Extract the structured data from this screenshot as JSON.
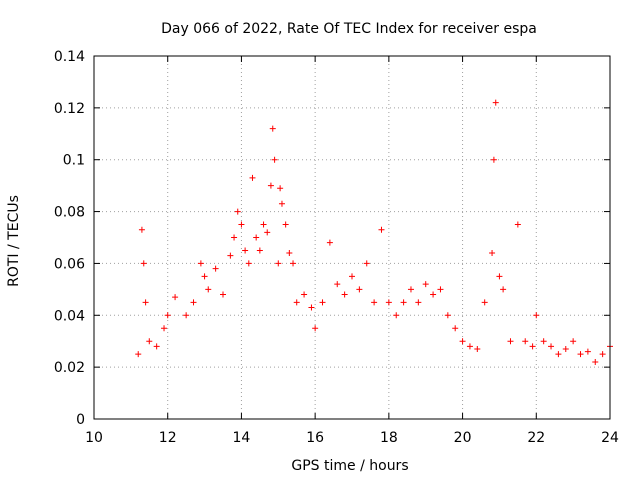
{
  "chart_data": {
    "type": "scatter",
    "title": "Day 066 of 2022, Rate Of TEC Index for receiver espa",
    "xlabel": "GPS time / hours",
    "ylabel": "ROTI / TECUs",
    "xlim": [
      10,
      24
    ],
    "ylim": [
      0,
      0.14
    ],
    "x_ticks": [
      10,
      12,
      14,
      16,
      18,
      20,
      22,
      24
    ],
    "y_ticks": [
      0,
      0.02,
      0.04,
      0.06,
      0.08,
      0.1,
      0.12,
      0.14
    ],
    "y_tick_labels": [
      "0",
      "0.02",
      "0.04",
      "0.06",
      "0.08",
      "0.1",
      "0.12",
      "0.14"
    ],
    "grid": true,
    "marker": "+",
    "color": "#ff0000",
    "series": [
      {
        "name": "ROTI",
        "x": [
          11.2,
          11.3,
          11.35,
          11.4,
          11.5,
          11.7,
          11.9,
          12.0,
          12.2,
          12.5,
          12.7,
          12.9,
          13.0,
          13.1,
          13.3,
          13.5,
          13.7,
          13.8,
          13.9,
          14.0,
          14.1,
          14.2,
          14.3,
          14.4,
          14.5,
          14.6,
          14.7,
          14.8,
          14.85,
          14.9,
          15.0,
          15.05,
          15.1,
          15.2,
          15.3,
          15.4,
          15.5,
          15.7,
          15.9,
          16.0,
          16.2,
          16.4,
          16.6,
          16.8,
          17.0,
          17.2,
          17.4,
          17.6,
          17.8,
          18.0,
          18.2,
          18.4,
          18.6,
          18.8,
          19.0,
          19.2,
          19.4,
          19.6,
          19.8,
          20.0,
          20.2,
          20.4,
          20.6,
          20.8,
          20.85,
          20.9,
          21.0,
          21.1,
          21.3,
          21.5,
          21.7,
          21.9,
          22.0,
          22.2,
          22.4,
          22.6,
          22.8,
          23.0,
          23.2,
          23.4,
          23.6,
          23.8,
          24.0
        ],
        "y": [
          0.025,
          0.073,
          0.06,
          0.045,
          0.03,
          0.028,
          0.035,
          0.04,
          0.047,
          0.04,
          0.045,
          0.06,
          0.055,
          0.05,
          0.058,
          0.048,
          0.063,
          0.07,
          0.08,
          0.075,
          0.065,
          0.06,
          0.093,
          0.07,
          0.065,
          0.075,
          0.072,
          0.09,
          0.112,
          0.1,
          0.06,
          0.089,
          0.083,
          0.075,
          0.064,
          0.06,
          0.045,
          0.048,
          0.043,
          0.035,
          0.045,
          0.068,
          0.052,
          0.048,
          0.055,
          0.05,
          0.06,
          0.045,
          0.073,
          0.045,
          0.04,
          0.045,
          0.05,
          0.045,
          0.052,
          0.048,
          0.05,
          0.04,
          0.035,
          0.03,
          0.028,
          0.027,
          0.045,
          0.064,
          0.1,
          0.122,
          0.055,
          0.05,
          0.03,
          0.075,
          0.03,
          0.028,
          0.04,
          0.03,
          0.028,
          0.025,
          0.027,
          0.03,
          0.025,
          0.026,
          0.022,
          0.025,
          0.028
        ]
      }
    ]
  }
}
